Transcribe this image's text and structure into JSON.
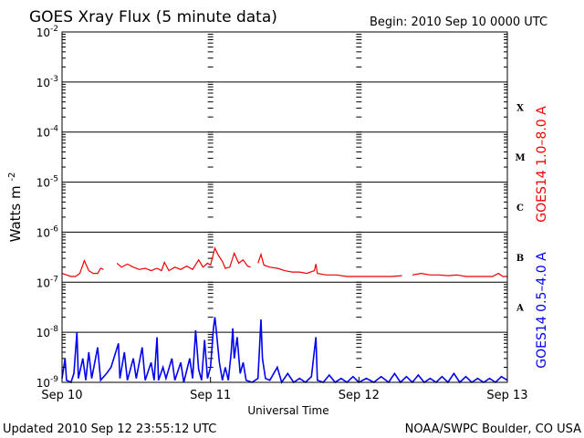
{
  "chart_data": {
    "type": "line",
    "title": "GOES Xray Flux (5 minute data)",
    "begin_label": "Begin:  2010 Sep 10 0000 UTC",
    "xlabel": "Universal Time",
    "ylabel": "Watts m",
    "ylabel_superscript": "-2",
    "y_scale": "log",
    "ylim": [
      1e-09,
      0.01
    ],
    "y_ticks": [
      {
        "base": "10",
        "exp": "-2",
        "value": 0.01
      },
      {
        "base": "10",
        "exp": "-3",
        "value": 0.001
      },
      {
        "base": "10",
        "exp": "-4",
        "value": 0.0001
      },
      {
        "base": "10",
        "exp": "-5",
        "value": 1e-05
      },
      {
        "base": "10",
        "exp": "-6",
        "value": 1e-06
      },
      {
        "base": "10",
        "exp": "-7",
        "value": 1e-07
      },
      {
        "base": "10",
        "exp": "-8",
        "value": 1e-08
      },
      {
        "base": "10",
        "exp": "-9",
        "value": 1e-09
      }
    ],
    "x_range_days": [
      0,
      3
    ],
    "x_ticks": [
      {
        "label": "Sep 10",
        "day": 0
      },
      {
        "label": "Sep 11",
        "day": 1
      },
      {
        "label": "Sep 12",
        "day": 2
      },
      {
        "label": "Sep 13",
        "day": 3
      }
    ],
    "flare_classes": [
      {
        "label": "X",
        "value": 0.000316
      },
      {
        "label": "M",
        "value": 3.16e-05
      },
      {
        "label": "C",
        "value": 3.16e-06
      },
      {
        "label": "B",
        "value": 3.16e-07
      },
      {
        "label": "A",
        "value": 3.16e-08
      }
    ],
    "grid": "horizontal at each decade",
    "series": [
      {
        "name": "GOES14 1.0–8.0 A",
        "color": "#ee0000",
        "points": [
          [
            0.0,
            1.5e-07
          ],
          [
            0.03,
            1.4e-07
          ],
          [
            0.06,
            1.3e-07
          ],
          [
            0.09,
            1.3e-07
          ],
          [
            0.12,
            1.5e-07
          ],
          [
            0.15,
            2.7e-07
          ],
          [
            0.18,
            1.7e-07
          ],
          [
            0.21,
            1.5e-07
          ],
          [
            0.24,
            1.5e-07
          ],
          [
            0.26,
            1.9e-07
          ],
          [
            0.28,
            1.8e-07
          ],
          [
            0.37,
            2.4e-07
          ],
          [
            0.4,
            2e-07
          ],
          [
            0.44,
            2.3e-07
          ],
          [
            0.48,
            2e-07
          ],
          [
            0.52,
            1.8e-07
          ],
          [
            0.56,
            1.9e-07
          ],
          [
            0.6,
            1.7e-07
          ],
          [
            0.64,
            1.9e-07
          ],
          [
            0.67,
            1.7e-07
          ],
          [
            0.69,
            2.5e-07
          ],
          [
            0.72,
            1.7e-07
          ],
          [
            0.76,
            2e-07
          ],
          [
            0.8,
            1.8e-07
          ],
          [
            0.84,
            2.1e-07
          ],
          [
            0.88,
            1.8e-07
          ],
          [
            0.92,
            2.8e-07
          ],
          [
            0.95,
            2e-07
          ],
          [
            0.98,
            2.4e-07
          ],
          [
            1.0,
            2.2e-07
          ],
          [
            1.03,
            4.8e-07
          ],
          [
            1.05,
            3.6e-07
          ],
          [
            1.08,
            2.6e-07
          ],
          [
            1.1,
            1.9e-07
          ],
          [
            1.13,
            2e-07
          ],
          [
            1.16,
            3.8e-07
          ],
          [
            1.19,
            2.4e-07
          ],
          [
            1.22,
            2.8e-07
          ],
          [
            1.25,
            2.1e-07
          ],
          [
            1.27,
            2e-07
          ],
          [
            1.32,
            2.4e-07
          ],
          [
            1.34,
            3.6e-07
          ],
          [
            1.36,
            2.2e-07
          ],
          [
            1.4,
            2e-07
          ],
          [
            1.45,
            1.9e-07
          ],
          [
            1.5,
            1.7e-07
          ],
          [
            1.55,
            1.6e-07
          ],
          [
            1.6,
            1.6e-07
          ],
          [
            1.65,
            1.5e-07
          ],
          [
            1.7,
            1.7e-07
          ],
          [
            1.71,
            2.3e-07
          ],
          [
            1.72,
            1.5e-07
          ],
          [
            1.78,
            1.4e-07
          ],
          [
            1.85,
            1.4e-07
          ],
          [
            1.92,
            1.3e-07
          ],
          [
            2.0,
            1.3e-07
          ],
          [
            2.08,
            1.3e-07
          ],
          [
            2.15,
            1.3e-07
          ],
          [
            2.22,
            1.3e-07
          ],
          [
            2.29,
            1.35e-07
          ],
          [
            2.36,
            1.4e-07
          ],
          [
            2.42,
            1.5e-07
          ],
          [
            2.48,
            1.4e-07
          ],
          [
            2.54,
            1.4e-07
          ],
          [
            2.6,
            1.35e-07
          ],
          [
            2.66,
            1.4e-07
          ],
          [
            2.72,
            1.3e-07
          ],
          [
            2.78,
            1.3e-07
          ],
          [
            2.84,
            1.3e-07
          ],
          [
            2.9,
            1.3e-07
          ],
          [
            2.94,
            1.5e-07
          ],
          [
            2.97,
            1.3e-07
          ],
          [
            3.0,
            1.3e-07
          ]
        ],
        "gaps_after_day": [
          0.28,
          1.27,
          2.29
        ]
      },
      {
        "name": "GOES14 0.5–4.0 A",
        "color": "#0000ee",
        "points": [
          [
            0.0,
            1.2e-09
          ],
          [
            0.02,
            3e-09
          ],
          [
            0.03,
            1.1e-09
          ],
          [
            0.06,
            1e-09
          ],
          [
            0.08,
            1.5e-09
          ],
          [
            0.1,
            1e-08
          ],
          [
            0.11,
            1.2e-09
          ],
          [
            0.14,
            3e-09
          ],
          [
            0.16,
            1.1e-09
          ],
          [
            0.18,
            4e-09
          ],
          [
            0.2,
            1.2e-09
          ],
          [
            0.24,
            5e-09
          ],
          [
            0.26,
            1.1e-09
          ],
          [
            0.3,
            1.5e-09
          ],
          [
            0.33,
            2e-09
          ],
          [
            0.38,
            6e-09
          ],
          [
            0.39,
            1.2e-09
          ],
          [
            0.42,
            4e-09
          ],
          [
            0.44,
            1.1e-09
          ],
          [
            0.48,
            3e-09
          ],
          [
            0.5,
            1.2e-09
          ],
          [
            0.54,
            5e-09
          ],
          [
            0.56,
            1.1e-09
          ],
          [
            0.6,
            2.5e-09
          ],
          [
            0.62,
            1.1e-09
          ],
          [
            0.64,
            8e-09
          ],
          [
            0.65,
            1.1e-09
          ],
          [
            0.68,
            2e-09
          ],
          [
            0.7,
            1.2e-09
          ],
          [
            0.74,
            3e-09
          ],
          [
            0.76,
            1.1e-09
          ],
          [
            0.8,
            2.5e-09
          ],
          [
            0.82,
            1e-09
          ],
          [
            0.86,
            3e-09
          ],
          [
            0.88,
            1.2e-09
          ],
          [
            0.9,
            1.1e-08
          ],
          [
            0.92,
            1.8e-09
          ],
          [
            0.94,
            1.1e-09
          ],
          [
            0.96,
            7e-09
          ],
          [
            0.98,
            1.2e-09
          ],
          [
            1.0,
            2e-09
          ],
          [
            1.02,
            1.2e-08
          ],
          [
            1.03,
            2e-08
          ],
          [
            1.04,
            1e-08
          ],
          [
            1.06,
            2.5e-09
          ],
          [
            1.08,
            1.1e-09
          ],
          [
            1.1,
            2e-09
          ],
          [
            1.12,
            1.1e-09
          ],
          [
            1.14,
            4e-09
          ],
          [
            1.15,
            1.2e-08
          ],
          [
            1.16,
            3e-09
          ],
          [
            1.18,
            8e-09
          ],
          [
            1.2,
            1.5e-09
          ],
          [
            1.22,
            2.5e-09
          ],
          [
            1.24,
            1.1e-09
          ],
          [
            1.28,
            1e-09
          ],
          [
            1.32,
            1.2e-09
          ],
          [
            1.34,
            1.8e-08
          ],
          [
            1.35,
            3e-09
          ],
          [
            1.37,
            1.2e-09
          ],
          [
            1.4,
            1.1e-09
          ],
          [
            1.45,
            2e-09
          ],
          [
            1.48,
            1e-09
          ],
          [
            1.52,
            1.5e-09
          ],
          [
            1.56,
            1e-09
          ],
          [
            1.6,
            1.2e-09
          ],
          [
            1.64,
            1e-09
          ],
          [
            1.68,
            1.3e-09
          ],
          [
            1.71,
            8e-09
          ],
          [
            1.72,
            1.1e-09
          ],
          [
            1.76,
            1e-09
          ],
          [
            1.8,
            1.4e-09
          ],
          [
            1.84,
            1e-09
          ],
          [
            1.88,
            1.2e-09
          ],
          [
            1.92,
            1e-09
          ],
          [
            1.96,
            1.3e-09
          ],
          [
            2.0,
            1e-09
          ],
          [
            2.05,
            1.2e-09
          ],
          [
            2.1,
            1e-09
          ],
          [
            2.15,
            1.3e-09
          ],
          [
            2.2,
            1e-09
          ],
          [
            2.24,
            1.5e-09
          ],
          [
            2.28,
            1e-09
          ],
          [
            2.32,
            1.3e-09
          ],
          [
            2.36,
            1e-09
          ],
          [
            2.4,
            1.4e-09
          ],
          [
            2.44,
            1e-09
          ],
          [
            2.48,
            1.2e-09
          ],
          [
            2.52,
            1e-09
          ],
          [
            2.56,
            1.3e-09
          ],
          [
            2.6,
            1e-09
          ],
          [
            2.64,
            1.5e-09
          ],
          [
            2.68,
            1e-09
          ],
          [
            2.72,
            1.3e-09
          ],
          [
            2.76,
            1e-09
          ],
          [
            2.8,
            1.2e-09
          ],
          [
            2.84,
            1e-09
          ],
          [
            2.88,
            1.2e-09
          ],
          [
            2.92,
            1e-09
          ],
          [
            2.96,
            1.3e-09
          ],
          [
            3.0,
            1.1e-09
          ]
        ]
      }
    ]
  },
  "footer": {
    "updated": "Updated 2010 Sep 12 23:55:12 UTC",
    "credit": "NOAA/SWPC Boulder, CO USA"
  }
}
